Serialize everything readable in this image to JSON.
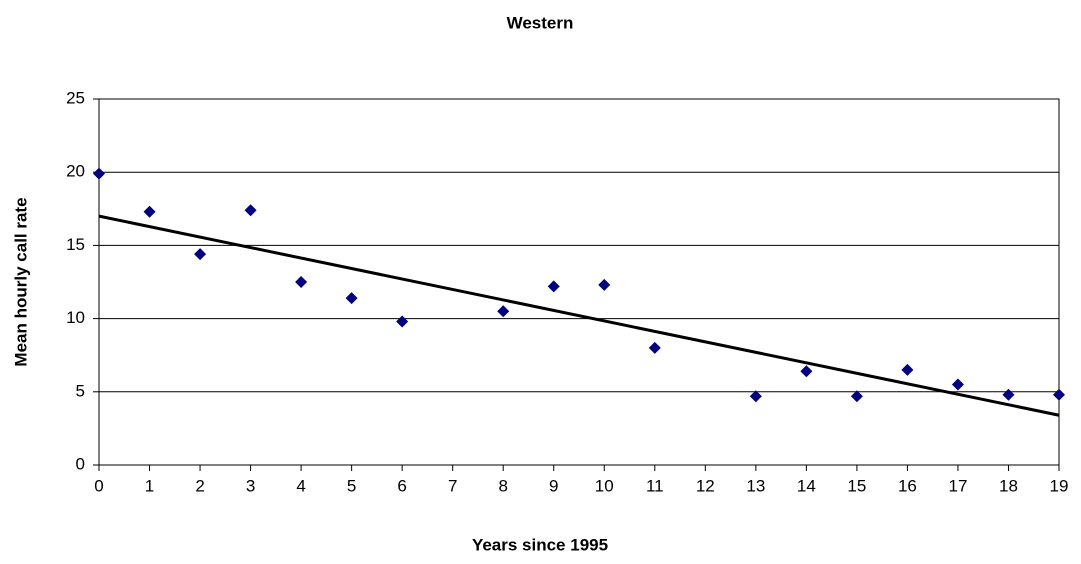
{
  "chart_data": {
    "type": "scatter",
    "title": "Western",
    "x_label": "Years since 1995",
    "y_label": "Mean hourly call rate",
    "x": [
      0,
      1,
      2,
      3,
      4,
      5,
      6,
      8,
      9,
      10,
      11,
      13,
      14,
      15,
      16,
      17,
      18,
      19
    ],
    "values": [
      19.9,
      17.3,
      14.4,
      17.4,
      12.5,
      11.4,
      9.8,
      10.5,
      12.2,
      12.3,
      8.0,
      4.7,
      6.4,
      4.7,
      6.5,
      5.5,
      4.8,
      4.8
    ],
    "color": "#000080",
    "trendline": {
      "x": [
        0,
        19
      ],
      "values": [
        17.0,
        3.4
      ],
      "color": "#000000"
    },
    "xlim": [
      0,
      19
    ],
    "xticks": [
      0,
      1,
      2,
      3,
      4,
      5,
      6,
      7,
      8,
      9,
      10,
      11,
      12,
      13,
      14,
      15,
      16,
      17,
      18,
      19
    ],
    "ylim": [
      0,
      25
    ],
    "yticks": [
      0,
      5,
      10,
      15,
      20,
      25
    ],
    "grid": true
  }
}
